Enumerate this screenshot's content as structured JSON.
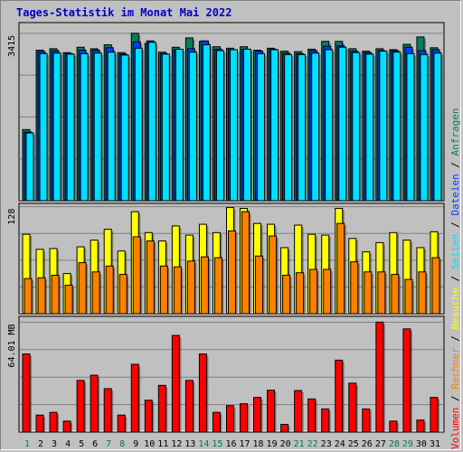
{
  "title": "Tages-Statistik im Monat Mai 2022",
  "colors": {
    "anfragen": "#008060",
    "dateien": "#0040ff",
    "seiten": "#00e0ff",
    "besuche": "#ffff00",
    "rechner": "#ff8000",
    "volumen": "#ff0000",
    "weekend_label": "#008040",
    "weekday_label": "#000000"
  },
  "chart_data": {
    "type": "bar",
    "title": "Tages-Statistik im Monat Mai 2022",
    "days": [
      "1",
      "2",
      "3",
      "4",
      "5",
      "6",
      "7",
      "8",
      "9",
      "10",
      "11",
      "12",
      "13",
      "14",
      "15",
      "16",
      "17",
      "18",
      "19",
      "20",
      "21",
      "22",
      "23",
      "24",
      "25",
      "26",
      "27",
      "28",
      "29",
      "30",
      "31"
    ],
    "weekend_days": [
      "1",
      "7",
      "8",
      "14",
      "15",
      "21",
      "22",
      "28",
      "29"
    ],
    "panels": [
      {
        "id": "top",
        "axis_label": "3415",
        "ymax": 3415,
        "series": [
          {
            "name": "Anfragen",
            "color": "#008060",
            "values": [
              1450,
              3070,
              3100,
              3020,
              3130,
              3100,
              3180,
              3020,
              3415,
              3210,
              3030,
              3130,
              3320,
              3250,
              3140,
              3110,
              3140,
              3070,
              3110,
              3050,
              3040,
              3090,
              3250,
              3250,
              3100,
              3050,
              3100,
              3080,
              3190,
              3340,
              3120
            ]
          },
          {
            "name": "Dateien",
            "color": "#0040ff",
            "values": [
              1400,
              3040,
              3060,
              3000,
              3070,
              3070,
              3120,
              2990,
              3240,
              3260,
              3000,
              3080,
              3100,
              3260,
              3090,
              3080,
              3090,
              3050,
              3090,
              3010,
              3000,
              3060,
              3150,
              3160,
              3050,
              3020,
              3060,
              3060,
              3130,
              3060,
              3080
            ]
          },
          {
            "name": "Seiten",
            "color": "#00e0ff",
            "values": [
              1380,
              3000,
              3010,
              2990,
              3000,
              3010,
              3030,
              2970,
              3110,
              3230,
              2990,
              3090,
              3030,
              3180,
              3060,
              3080,
              3090,
              3000,
              3080,
              2980,
              2980,
              3010,
              3080,
              3130,
              3020,
              2990,
              3050,
              3030,
              3000,
              2980,
              3010
            ]
          }
        ]
      },
      {
        "id": "middle",
        "axis_label": "128",
        "ymax": 128,
        "series": [
          {
            "name": "Besuche",
            "color": "#ffff00",
            "values": [
              95,
              77,
              78,
              48,
              80,
              88,
              101,
              75,
              122,
              97,
              87,
              105,
              94,
              107,
              97,
              127,
              126,
              108,
              107,
              79,
              106,
              95,
              94,
              126,
              90,
              74,
              85,
              97,
              88,
              79,
              98
            ]
          },
          {
            "name": "Rechner",
            "color": "#ff8000",
            "values": [
              42,
              43,
              46,
              34,
              61,
              50,
              57,
              47,
              92,
              87,
              57,
              56,
              63,
              68,
              67,
              99,
              122,
              69,
              93,
              46,
              49,
              53,
              53,
              108,
              62,
              50,
              50,
              47,
              41,
              50,
              67
            ]
          }
        ]
      },
      {
        "id": "bottom",
        "axis_label": "64.01 MB",
        "ymax": 64.01,
        "series": [
          {
            "name": "Volumen",
            "color": "#ff0000",
            "values": [
              45.5,
              9.9,
              11.5,
              6.4,
              30.1,
              33.1,
              25.3,
              9.9,
              39.5,
              18.6,
              27.2,
              56.3,
              30.1,
              45.5,
              11.5,
              15.4,
              16.5,
              20.2,
              24.4,
              4.5,
              24.2,
              19.3,
              13.5,
              41.9,
              28.5,
              13.5,
              64.01,
              6.4,
              60.1,
              7.0,
              20.2
            ]
          }
        ]
      }
    ],
    "right_legend": [
      {
        "text": "Volumen",
        "color": "#ff0000"
      },
      {
        "text": "Rechner",
        "color": "#ff8000"
      },
      {
        "text": "Besuche",
        "color": "#ffff00"
      },
      {
        "text": "Seiten",
        "color": "#00e0ff"
      },
      {
        "text": "Dateien",
        "color": "#0040ff"
      },
      {
        "text": "Anfragen",
        "color": "#008060"
      }
    ]
  }
}
